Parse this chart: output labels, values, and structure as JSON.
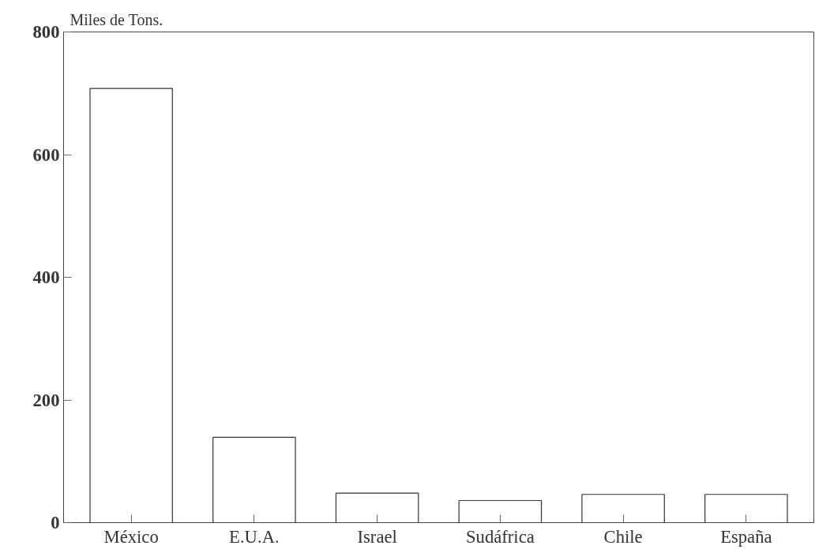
{
  "chart_data": {
    "type": "bar",
    "ylabel": "Miles de Tons.",
    "categories": [
      "México",
      "E.U.A.",
      "Israel",
      "Sudáfrica",
      "Chile",
      "España"
    ],
    "values": [
      708,
      139,
      48,
      36,
      46,
      46
    ],
    "color": "#ffffff",
    "ylim": [
      0,
      800
    ],
    "yticks": [
      0,
      200,
      400,
      600,
      800
    ],
    "grid": false
  }
}
